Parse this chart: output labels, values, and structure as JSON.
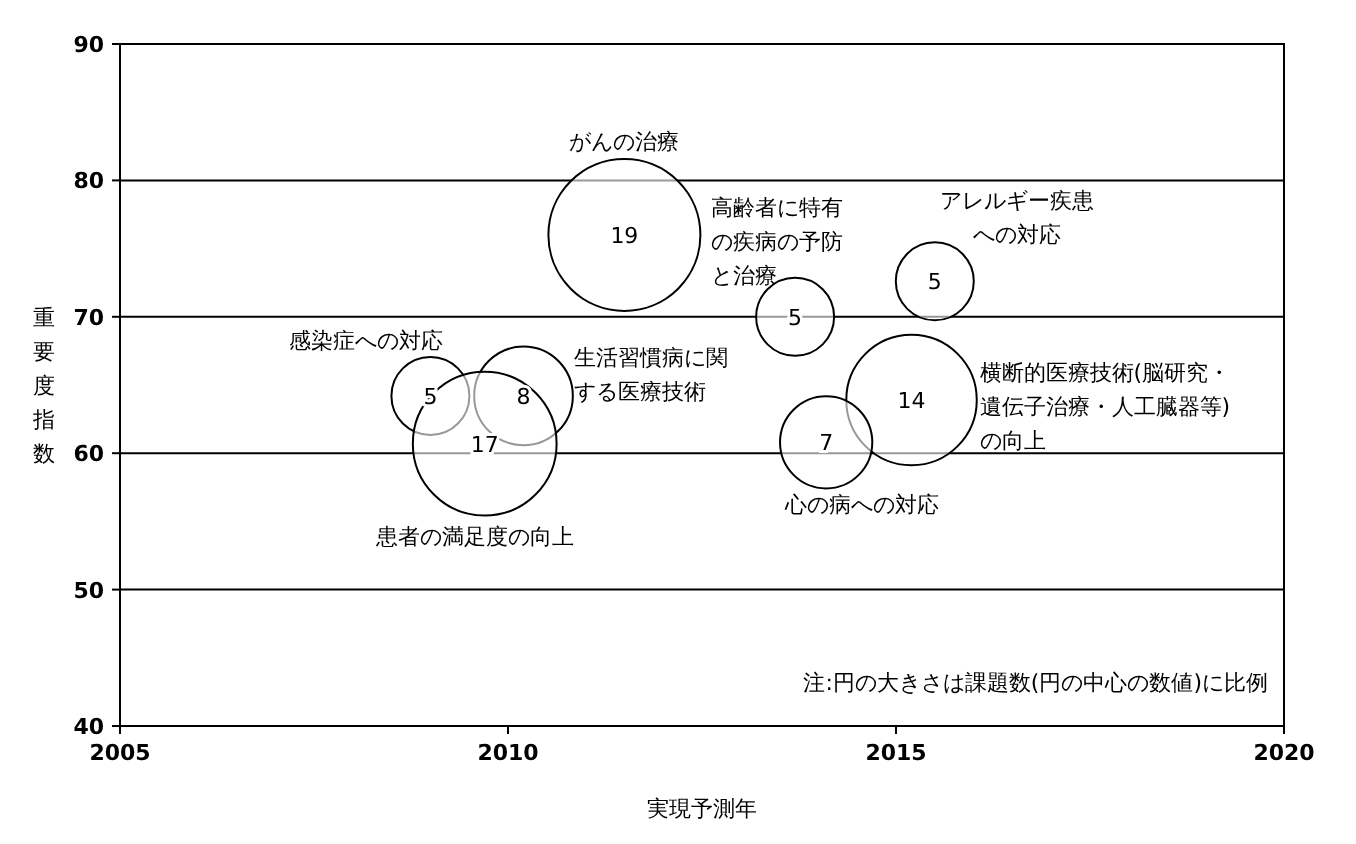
{
  "chart_data": {
    "type": "bubble",
    "xlabel": "実現予測年",
    "ylabel": "重要度指数",
    "series": [
      {
        "name": "がんの治療",
        "color": "#ffffff",
        "x": [
          2011.5
        ],
        "values": [
          76
        ],
        "sizes": [
          19
        ],
        "value_labels": [
          "19"
        ]
      },
      {
        "name": "横断的医療技術(脳研究・遺伝子治療・人工臓器等)の向上",
        "color": "#ffffff",
        "x": [
          2015.2
        ],
        "values": [
          63.9
        ],
        "sizes": [
          14
        ],
        "value_labels": [
          "14"
        ]
      },
      {
        "name": "心の病への対応",
        "color": "#ffffff",
        "x": [
          2014.1
        ],
        "values": [
          60.8
        ],
        "sizes": [
          7
        ],
        "value_labels": [
          "7"
        ]
      },
      {
        "name": "高齢者に特有の疾病の予防と治療",
        "color": "#ffffff",
        "x": [
          2013.7
        ],
        "values": [
          70
        ],
        "sizes": [
          5
        ],
        "value_labels": [
          "5"
        ]
      },
      {
        "name": "アレルギー疾患への対応",
        "color": "#ffffff",
        "x": [
          2015.5
        ],
        "values": [
          72.6
        ],
        "sizes": [
          5
        ],
        "value_labels": [
          "5"
        ]
      },
      {
        "name": "感染症への対応",
        "color": "#ffffff",
        "x": [
          2009.0
        ],
        "values": [
          64.2
        ],
        "sizes": [
          5
        ],
        "value_labels": [
          "5"
        ]
      },
      {
        "name": "生活習慣病に関する医療技術",
        "color": "#ffffff",
        "x": [
          2010.2
        ],
        "values": [
          64.2
        ],
        "sizes": [
          8
        ],
        "value_labels": [
          "8"
        ]
      },
      {
        "name": "患者の満足度の向上",
        "color": "#ffffff",
        "x": [
          2009.7
        ],
        "values": [
          60.7
        ],
        "sizes": [
          17
        ],
        "value_labels": [
          "17"
        ]
      }
    ],
    "xlim": [
      2005,
      2020
    ],
    "xticks": [
      2005,
      2010,
      2015,
      2020
    ],
    "ylim": [
      40,
      90
    ],
    "yticks": [
      40,
      50,
      60,
      70,
      80,
      90
    ],
    "grid": "y",
    "annotations": [
      "注:円の大きさは課題数(円の中心の数値)に比例"
    ]
  }
}
